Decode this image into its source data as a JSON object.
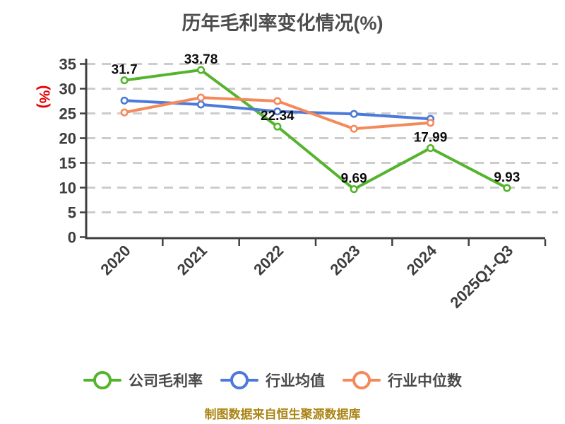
{
  "title": "历年毛利率变化情况(%)",
  "y_axis_title": "(%)",
  "footer_note": "制图数据来自恒生聚源数据库",
  "chart_data": {
    "type": "line",
    "title": "历年毛利率变化情况(%)",
    "categories": [
      "2020",
      "2021",
      "2022",
      "2023",
      "2024",
      "2025Q1-Q3"
    ],
    "series": [
      {
        "name": "公司毛利率",
        "color": "#55b42d",
        "values": [
          31.7,
          33.78,
          22.34,
          9.69,
          17.99,
          9.93
        ],
        "data_labels": [
          "31.7",
          "33.78",
          "22.34",
          "9.69",
          "17.99",
          "9.93"
        ]
      },
      {
        "name": "行业均值",
        "color": "#4c7ad8",
        "values": [
          27.6,
          26.8,
          25.4,
          24.9,
          23.9,
          null
        ],
        "data_labels": null
      },
      {
        "name": "行业中位数",
        "color": "#f48a5c",
        "values": [
          25.2,
          28.2,
          27.5,
          21.9,
          23.1,
          null
        ],
        "data_labels": null
      }
    ],
    "ylabel": "(%)",
    "ylim": [
      0,
      35
    ],
    "ytick_interval": 5,
    "grid": "dashed-horizontal",
    "legend_position": "bottom"
  },
  "colors": {
    "background": "#ffffff",
    "title_text": "#4d4d4d",
    "axis_text": "#3d3d3d",
    "axis_line": "#3f3f3f",
    "gridline": "#cccccc",
    "data_label_text": "#0d0d0d",
    "y_axis_title_text": "#e60000",
    "legend_text": "#4a4a4a",
    "footer_text": "#ab8414"
  }
}
